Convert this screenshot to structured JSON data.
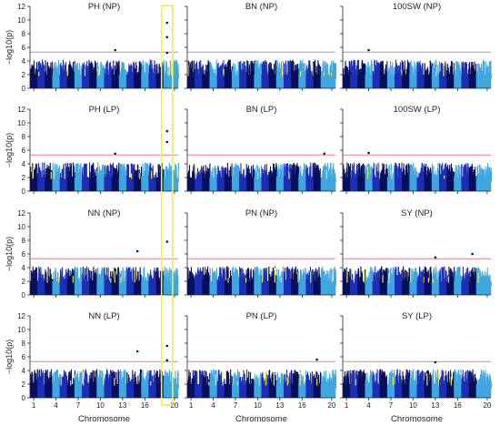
{
  "chart_data": {
    "type": "scatter",
    "plot_style": "manhattan",
    "ylabel": "−log10(p)",
    "xlabel": "Chromosome",
    "x_ticks": [
      "1",
      "4",
      "7",
      "10",
      "13",
      "16",
      "20"
    ],
    "y_ticks": [
      0,
      2,
      4,
      6,
      8,
      10,
      12
    ],
    "ylim": [
      0,
      12
    ],
    "chromosomes": 20,
    "threshold_line": 5.3,
    "highlight_chromosome": 19,
    "colors": {
      "chrom_palette": [
        "#0a0f5c",
        "#1a2fb8",
        "#3fa7e0",
        "#e8e83a"
      ],
      "threshold": "#f08080",
      "highlight": "#f2f23a"
    },
    "panels": [
      {
        "title": "PH (NP)",
        "peaks": [
          {
            "chrom": 19,
            "value": 9.6
          },
          {
            "chrom": 19,
            "value": 7.5
          },
          {
            "chrom": 19,
            "value": 5.2
          },
          {
            "chrom": 12,
            "value": 5.6
          }
        ]
      },
      {
        "title": "BN (NP)",
        "peaks": []
      },
      {
        "title": "100SW (NP)",
        "peaks": [
          {
            "chrom": 4,
            "value": 5.6
          }
        ]
      },
      {
        "title": "PH (LP)",
        "peaks": [
          {
            "chrom": 19,
            "value": 8.8
          },
          {
            "chrom": 19,
            "value": 7.2
          },
          {
            "chrom": 12,
            "value": 5.5
          }
        ]
      },
      {
        "title": "BN (LP)",
        "peaks": [
          {
            "chrom": 19,
            "value": 5.5
          }
        ]
      },
      {
        "title": "100SW (LP)",
        "peaks": [
          {
            "chrom": 4,
            "value": 5.6
          }
        ]
      },
      {
        "title": "NN (NP)",
        "peaks": [
          {
            "chrom": 15,
            "value": 6.4
          },
          {
            "chrom": 19,
            "value": 7.8
          }
        ]
      },
      {
        "title": "PN (NP)",
        "peaks": []
      },
      {
        "title": "SY (NP)",
        "peaks": [
          {
            "chrom": 13,
            "value": 5.5
          },
          {
            "chrom": 18,
            "value": 6.0
          }
        ]
      },
      {
        "title": "NN (LP)",
        "peaks": [
          {
            "chrom": 15,
            "value": 6.8
          },
          {
            "chrom": 19,
            "value": 7.6
          },
          {
            "chrom": 19,
            "value": 5.5
          }
        ]
      },
      {
        "title": "PN (LP)",
        "peaks": [
          {
            "chrom": 18,
            "value": 5.6
          }
        ]
      },
      {
        "title": "SY (LP)",
        "peaks": [
          {
            "chrom": 13,
            "value": 5.2
          }
        ]
      }
    ]
  }
}
